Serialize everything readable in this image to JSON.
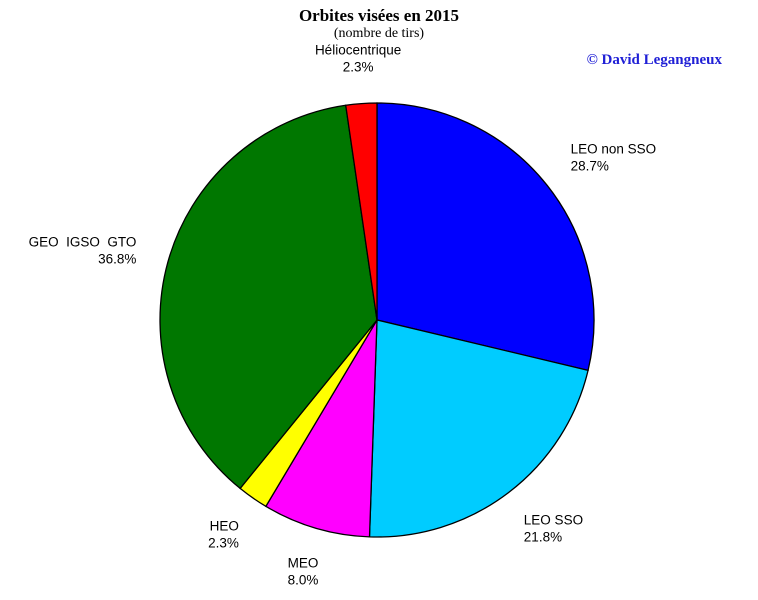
{
  "chart_data": {
    "type": "pie",
    "title": "Orbites visées en 2015",
    "subtitle": "(nombre de tirs)",
    "slices": [
      {
        "label": "LEO non SSO",
        "percent_label": "28.7%",
        "value": 28.7,
        "color": "#0000ff"
      },
      {
        "label": "LEO SSO",
        "percent_label": "21.8%",
        "value": 21.8,
        "color": "#00ccff"
      },
      {
        "label": "MEO",
        "percent_label": "8.0%",
        "value": 8.0,
        "color": "#ff00ff"
      },
      {
        "label": "HEO",
        "percent_label": "2.3%",
        "value": 2.3,
        "color": "#ffff00"
      },
      {
        "label": "GEO  IGSO  GTO",
        "percent_label": "36.8%",
        "value": 36.8,
        "color": "#007700"
      },
      {
        "label": "Héliocentrique",
        "percent_label": "2.3%",
        "value": 2.3,
        "color": "#ff0000"
      }
    ],
    "start_direction": "top",
    "direction": "clockwise",
    "legend": "none"
  },
  "copyright": {
    "text": "© David Legangneux",
    "color": "#1f1fd6"
  }
}
